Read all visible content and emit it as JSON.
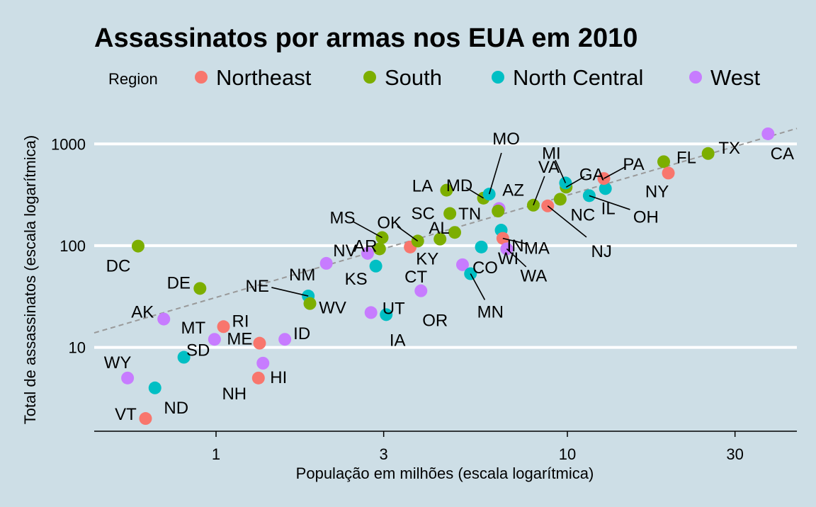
{
  "chart_data": {
    "type": "scatter",
    "title": "Assassinatos por armas nos EUA em 2010",
    "xlabel": "População em milhões (escala logarítmica)",
    "ylabel": "Total de assassinatos (escala logarítmica)",
    "x_scale": "log10",
    "y_scale": "log10",
    "xlim": [
      0.45,
      45
    ],
    "ylim": [
      1.5,
      2000
    ],
    "x_ticks": [
      {
        "value": 1,
        "label": "1"
      },
      {
        "value": 3,
        "label": "3"
      },
      {
        "value": 10,
        "label": "10"
      },
      {
        "value": 30,
        "label": "30"
      }
    ],
    "y_ticks": [
      {
        "value": 10,
        "label": "10"
      },
      {
        "value": 100,
        "label": "100"
      },
      {
        "value": 1000,
        "label": "1000"
      }
    ],
    "grid": "horizontal major",
    "reference_line": {
      "style": "dashed",
      "color": "#999999",
      "start": [
        0.45,
        13.9
      ],
      "end": [
        45,
        1420
      ]
    },
    "legend": {
      "title": "Region",
      "position": "top",
      "entries": [
        {
          "name": "Northeast",
          "color": "#F8766D"
        },
        {
          "name": "South",
          "color": "#7CAE00"
        },
        {
          "name": "North Central",
          "color": "#00BFC4"
        },
        {
          "name": "West",
          "color": "#C77CFF"
        }
      ]
    },
    "points": [
      {
        "label": "AL",
        "region": "South",
        "x": 4.78,
        "y": 135
      },
      {
        "label": "AK",
        "region": "West",
        "x": 0.71,
        "y": 19
      },
      {
        "label": "AZ",
        "region": "West",
        "x": 6.39,
        "y": 232
      },
      {
        "label": "AR",
        "region": "South",
        "x": 2.92,
        "y": 93
      },
      {
        "label": "CA",
        "region": "West",
        "x": 37.25,
        "y": 1257
      },
      {
        "label": "CO",
        "region": "West",
        "x": 5.03,
        "y": 65
      },
      {
        "label": "CT",
        "region": "Northeast",
        "x": 3.57,
        "y": 97
      },
      {
        "label": "DE",
        "region": "South",
        "x": 0.9,
        "y": 38
      },
      {
        "label": "DC",
        "region": "South",
        "x": 0.6,
        "y": 99
      },
      {
        "label": "FL",
        "region": "South",
        "x": 18.8,
        "y": 669
      },
      {
        "label": "GA",
        "region": "South",
        "x": 9.92,
        "y": 376
      },
      {
        "label": "HI",
        "region": "West",
        "x": 1.36,
        "y": 7
      },
      {
        "label": "ID",
        "region": "West",
        "x": 1.57,
        "y": 12
      },
      {
        "label": "IL",
        "region": "North Central",
        "x": 12.83,
        "y": 364
      },
      {
        "label": "IN",
        "region": "North Central",
        "x": 6.48,
        "y": 142
      },
      {
        "label": "IA",
        "region": "North Central",
        "x": 3.05,
        "y": 21
      },
      {
        "label": "KS",
        "region": "North Central",
        "x": 2.85,
        "y": 63
      },
      {
        "label": "KY",
        "region": "South",
        "x": 4.34,
        "y": 116
      },
      {
        "label": "LA",
        "region": "South",
        "x": 4.53,
        "y": 351
      },
      {
        "label": "ME",
        "region": "Northeast",
        "x": 1.33,
        "y": 11
      },
      {
        "label": "MD",
        "region": "South",
        "x": 5.77,
        "y": 293
      },
      {
        "label": "MA",
        "region": "Northeast",
        "x": 6.55,
        "y": 118
      },
      {
        "label": "MI",
        "region": "North Central",
        "x": 9.88,
        "y": 413
      },
      {
        "label": "MN",
        "region": "North Central",
        "x": 5.3,
        "y": 53
      },
      {
        "label": "MS",
        "region": "South",
        "x": 2.97,
        "y": 120
      },
      {
        "label": "MO",
        "region": "North Central",
        "x": 5.99,
        "y": 321
      },
      {
        "label": "MT",
        "region": "West",
        "x": 0.99,
        "y": 12
      },
      {
        "label": "NE",
        "region": "North Central",
        "x": 1.83,
        "y": 32
      },
      {
        "label": "NV",
        "region": "West",
        "x": 2.7,
        "y": 84
      },
      {
        "label": "NH",
        "region": "Northeast",
        "x": 1.32,
        "y": 5
      },
      {
        "label": "NJ",
        "region": "Northeast",
        "x": 8.79,
        "y": 246
      },
      {
        "label": "NM",
        "region": "West",
        "x": 2.06,
        "y": 67
      },
      {
        "label": "NY",
        "region": "Northeast",
        "x": 19.38,
        "y": 517
      },
      {
        "label": "NC",
        "region": "South",
        "x": 9.54,
        "y": 286
      },
      {
        "label": "ND",
        "region": "North Central",
        "x": 0.67,
        "y": 4
      },
      {
        "label": "OH",
        "region": "North Central",
        "x": 11.54,
        "y": 310
      },
      {
        "label": "OK",
        "region": "South",
        "x": 3.75,
        "y": 111
      },
      {
        "label": "OR",
        "region": "West",
        "x": 3.83,
        "y": 36
      },
      {
        "label": "PA",
        "region": "Northeast",
        "x": 12.7,
        "y": 457
      },
      {
        "label": "RI",
        "region": "Northeast",
        "x": 1.05,
        "y": 16
      },
      {
        "label": "SC",
        "region": "South",
        "x": 4.63,
        "y": 207
      },
      {
        "label": "SD",
        "region": "North Central",
        "x": 0.81,
        "y": 8
      },
      {
        "label": "TN",
        "region": "South",
        "x": 6.35,
        "y": 219
      },
      {
        "label": "TX",
        "region": "South",
        "x": 25.15,
        "y": 805
      },
      {
        "label": "UT",
        "region": "West",
        "x": 2.76,
        "y": 22
      },
      {
        "label": "VT",
        "region": "Northeast",
        "x": 0.63,
        "y": 2
      },
      {
        "label": "VA",
        "region": "South",
        "x": 8.0,
        "y": 250
      },
      {
        "label": "WA",
        "region": "West",
        "x": 6.72,
        "y": 93
      },
      {
        "label": "WV",
        "region": "South",
        "x": 1.85,
        "y": 27
      },
      {
        "label": "WI",
        "region": "North Central",
        "x": 5.69,
        "y": 97
      },
      {
        "label": "WY",
        "region": "West",
        "x": 0.56,
        "y": 5
      }
    ]
  }
}
